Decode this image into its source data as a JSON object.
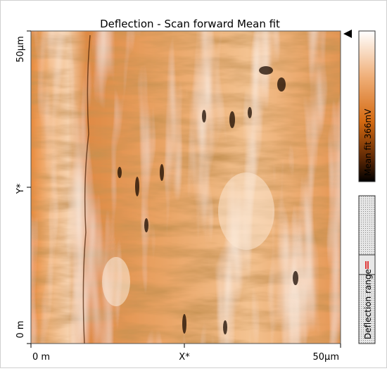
{
  "title": "Deflection - Scan forward   Mean fit",
  "y_axis": {
    "top": "50µm",
    "label": "Y*",
    "bottom": "0 m"
  },
  "x_axis": {
    "left": "0 m",
    "label": "X*",
    "right": "50µm"
  },
  "colorbar": {
    "label": "Mean fit 366mV"
  },
  "range_bar": {
    "label": "Deflection range"
  }
}
